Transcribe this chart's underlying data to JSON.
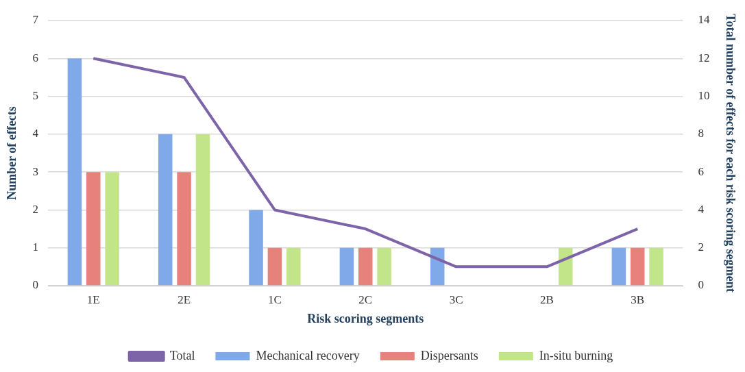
{
  "chart_data": {
    "type": "bar",
    "xlabel": "Risk scoring segments",
    "ylabel": "Number of effects",
    "y2label": "Total number of effects for each risk scoring segment",
    "categories": [
      "1E",
      "2E",
      "1C",
      "2C",
      "3C",
      "2B",
      "3B"
    ],
    "series": [
      {
        "name": "Mechanical recovery",
        "color": "#7fa9e8",
        "values": [
          6,
          4,
          2,
          1,
          1,
          0,
          1
        ]
      },
      {
        "name": "Dispersants",
        "color": "#e6827b",
        "values": [
          3,
          3,
          1,
          1,
          0,
          0,
          1
        ]
      },
      {
        "name": "In-situ burning",
        "color": "#c3e58a",
        "values": [
          3,
          4,
          1,
          1,
          0,
          1,
          1
        ]
      },
      {
        "name": "Total",
        "type": "line",
        "axis": "y2",
        "color": "#7d64a8",
        "values": [
          12,
          11,
          4,
          3,
          1,
          1,
          3
        ]
      }
    ],
    "ylim": [
      0,
      7
    ],
    "yticks": [
      0,
      1,
      2,
      3,
      4,
      5,
      6,
      7
    ],
    "y2lim": [
      0,
      14
    ],
    "y2ticks": [
      0,
      2,
      4,
      6,
      8,
      10,
      12,
      14
    ],
    "grid": "y",
    "legend": "bottom",
    "marker": "none"
  }
}
